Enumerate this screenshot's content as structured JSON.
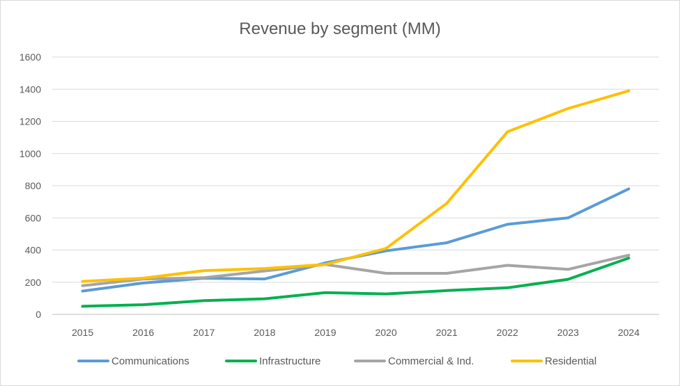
{
  "chart_data": {
    "type": "line",
    "title": "Revenue by segment (MM)",
    "xlabel": "",
    "ylabel": "",
    "x": [
      "2015",
      "2016",
      "2017",
      "2018",
      "2019",
      "2020",
      "2021",
      "2022",
      "2023",
      "2024"
    ],
    "ylim": [
      0,
      1600
    ],
    "yticks": [
      "0",
      "200",
      "400",
      "600",
      "800",
      "1000",
      "1200",
      "1400",
      "1600"
    ],
    "grid": true,
    "legend_position": "bottom",
    "series": [
      {
        "name": "Communications",
        "color": "#5b9bd5",
        "values": [
          145,
          195,
          225,
          220,
          320,
          395,
          445,
          560,
          600,
          780
        ]
      },
      {
        "name": "Infrastructure",
        "color": "#00b050",
        "values": [
          50,
          60,
          85,
          97,
          135,
          127,
          148,
          165,
          218,
          350
        ]
      },
      {
        "name": "Commercial & Ind.",
        "color": "#a5a5a5",
        "values": [
          178,
          220,
          228,
          270,
          310,
          255,
          255,
          305,
          280,
          368
        ]
      },
      {
        "name": "Residential",
        "color": "#ffc000",
        "values": [
          205,
          225,
          272,
          285,
          310,
          410,
          690,
          1135,
          1280,
          1390
        ]
      }
    ]
  }
}
